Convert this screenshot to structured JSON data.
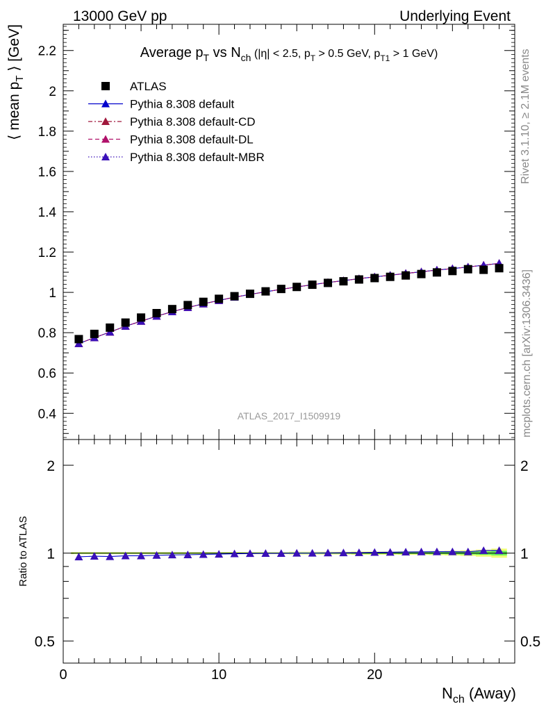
{
  "header": {
    "left": "13000 GeV pp",
    "right": "Underlying Event"
  },
  "side_text": {
    "rivet": "Rivet 3.1.10, ≥ 2.1M events",
    "mcplots": "mcplots.cern.ch [arXiv:1306.3436]"
  },
  "watermark": "ATLAS_2017_I1509919",
  "chart_data": [
    {
      "type": "scatter",
      "panel": "main",
      "title": {
        "main": "Average p",
        "sub_t": "T",
        "vs": " vs N",
        "sub_ch": "ch",
        "cut1": " (|η| < 2.5, p",
        "cut1_sub": "T",
        "cut2": " > 0.5 GeV, p",
        "cut2_sub": "T1",
        "cut3": " > 1 GeV)"
      },
      "ylabel": {
        "pre": "⟨ mean p",
        "sub": "T",
        "post": " ⟩ [GeV]"
      },
      "ylim": [
        0.27,
        2.33
      ],
      "xlim": [
        0,
        29
      ],
      "yticks": [
        "0.4",
        "0.6",
        "0.8",
        "1",
        "1.2",
        "1.4",
        "1.6",
        "1.8",
        "2",
        "2.2"
      ],
      "ytick_values": [
        0.4,
        0.6,
        0.8,
        1.0,
        1.2,
        1.4,
        1.6,
        1.8,
        2.0,
        2.2
      ],
      "legend_position": "top-left",
      "x": [
        1,
        2,
        3,
        4,
        5,
        6,
        7,
        8,
        9,
        10,
        11,
        12,
        13,
        14,
        15,
        16,
        17,
        18,
        19,
        20,
        21,
        22,
        23,
        24,
        25,
        26,
        27,
        28
      ],
      "series": [
        {
          "name": "ATLAS",
          "color": "#000000",
          "marker": "square",
          "values": [
            0.768,
            0.794,
            0.825,
            0.85,
            0.875,
            0.897,
            0.917,
            0.937,
            0.953,
            0.968,
            0.981,
            0.993,
            1.005,
            1.017,
            1.027,
            1.038,
            1.047,
            1.055,
            1.064,
            1.071,
            1.077,
            1.084,
            1.091,
            1.099,
            1.106,
            1.115,
            1.112,
            1.12
          ]
        },
        {
          "name": "Pythia 8.308 default",
          "color": "#0000cc",
          "marker": "triangle",
          "line": "solid",
          "values": [
            0.746,
            0.775,
            0.803,
            0.832,
            0.857,
            0.882,
            0.904,
            0.925,
            0.943,
            0.96,
            0.976,
            0.99,
            1.003,
            1.015,
            1.027,
            1.038,
            1.049,
            1.058,
            1.068,
            1.077,
            1.085,
            1.094,
            1.102,
            1.111,
            1.118,
            1.126,
            1.135,
            1.144
          ]
        },
        {
          "name": "Pythia 8.308 default-CD",
          "color": "#a0183c",
          "marker": "triangle",
          "line": "dashdot",
          "values": [
            0.746,
            0.775,
            0.803,
            0.832,
            0.857,
            0.882,
            0.904,
            0.925,
            0.943,
            0.96,
            0.976,
            0.99,
            1.003,
            1.015,
            1.027,
            1.038,
            1.049,
            1.058,
            1.068,
            1.077,
            1.085,
            1.094,
            1.102,
            1.111,
            1.118,
            1.126,
            1.135,
            1.144
          ]
        },
        {
          "name": "Pythia 8.308 default-DL",
          "color": "#b0106a",
          "marker": "triangle",
          "line": "dashed",
          "values": [
            0.746,
            0.775,
            0.803,
            0.832,
            0.857,
            0.882,
            0.904,
            0.925,
            0.943,
            0.96,
            0.976,
            0.99,
            1.003,
            1.015,
            1.027,
            1.038,
            1.049,
            1.058,
            1.068,
            1.077,
            1.085,
            1.094,
            1.102,
            1.111,
            1.118,
            1.126,
            1.135,
            1.144
          ]
        },
        {
          "name": "Pythia 8.308 default-MBR",
          "color": "#3a10b8",
          "marker": "triangle",
          "line": "dotted",
          "values": [
            0.746,
            0.775,
            0.803,
            0.832,
            0.857,
            0.882,
            0.904,
            0.925,
            0.943,
            0.96,
            0.976,
            0.99,
            1.003,
            1.015,
            1.027,
            1.038,
            1.049,
            1.058,
            1.068,
            1.077,
            1.085,
            1.094,
            1.102,
            1.111,
            1.118,
            1.126,
            1.135,
            1.144
          ]
        }
      ]
    },
    {
      "type": "line",
      "panel": "ratio",
      "ylabel": "Ratio to ATLAS",
      "yscale": "log",
      "ylim": [
        0.42,
        2.45
      ],
      "xlim": [
        0,
        29
      ],
      "yticks": [
        "0.5",
        "1",
        "2"
      ],
      "ytick_values": [
        0.5,
        1,
        2
      ],
      "xticks": [
        "0",
        "10",
        "20"
      ],
      "xtick_values": [
        0,
        10,
        20
      ],
      "xlabel": {
        "pre": "N",
        "sub": "ch",
        "post": " (Away)"
      },
      "x": [
        1,
        2,
        3,
        4,
        5,
        6,
        7,
        8,
        9,
        10,
        11,
        12,
        13,
        14,
        15,
        16,
        17,
        18,
        19,
        20,
        21,
        22,
        23,
        24,
        25,
        26,
        27,
        28
      ],
      "band_colors": {
        "inner": "#66ee55",
        "outer": "#eeff77"
      },
      "band_halfwidth": [
        0.004,
        0.004,
        0.004,
        0.004,
        0.004,
        0.004,
        0.004,
        0.004,
        0.004,
        0.004,
        0.004,
        0.004,
        0.004,
        0.004,
        0.005,
        0.005,
        0.005,
        0.005,
        0.006,
        0.006,
        0.006,
        0.007,
        0.007,
        0.008,
        0.009,
        0.011,
        0.014,
        0.018
      ],
      "series": [
        {
          "name": "Pythia 8.308 default",
          "color": "#0000cc",
          "values": [
            0.971,
            0.976,
            0.973,
            0.979,
            0.979,
            0.983,
            0.986,
            0.987,
            0.99,
            0.992,
            0.995,
            0.997,
            0.998,
            0.998,
            1.0,
            1.0,
            1.002,
            1.003,
            1.004,
            1.006,
            1.007,
            1.009,
            1.01,
            1.011,
            1.011,
            1.01,
            1.021,
            1.021
          ]
        }
      ]
    }
  ]
}
